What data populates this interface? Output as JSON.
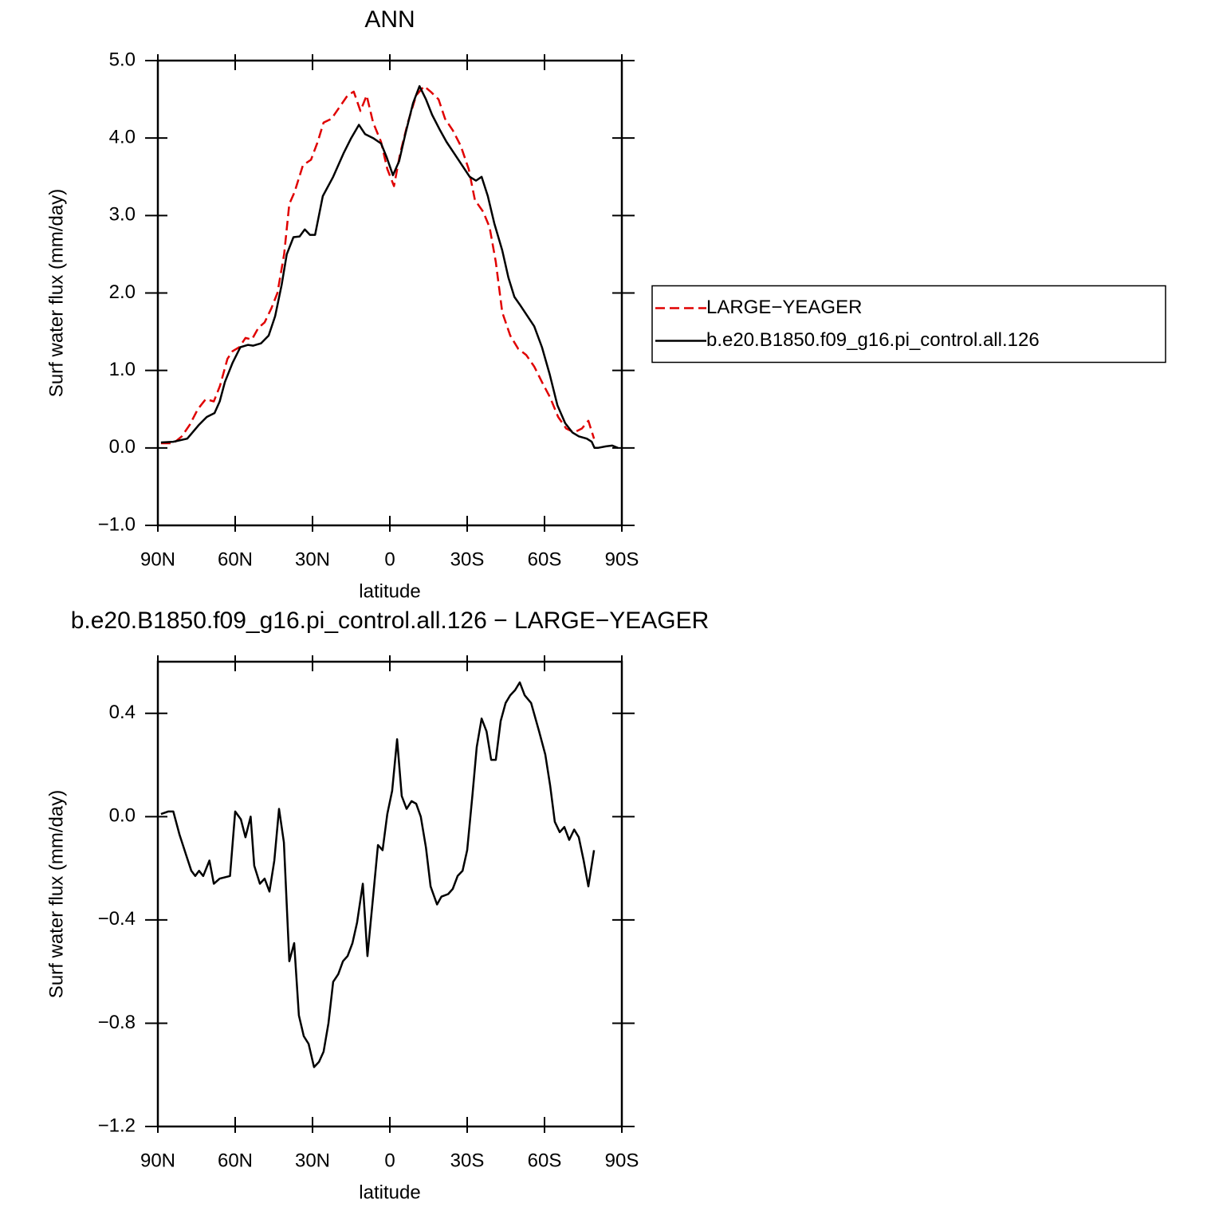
{
  "chart_data": [
    {
      "type": "line",
      "title": "ANN",
      "xlabel": "latitude",
      "ylabel": "Surf water flux (mm/day)",
      "xlim": [
        90,
        -90
      ],
      "xticks": [
        {
          "value": 90,
          "label": "90N"
        },
        {
          "value": 60,
          "label": "60N"
        },
        {
          "value": 30,
          "label": "30N"
        },
        0,
        {
          "value": -30,
          "label": "30S"
        },
        {
          "value": -60,
          "label": "60S"
        },
        {
          "value": -90,
          "label": "90S"
        }
      ],
      "ylim": [
        -1,
        5
      ],
      "yticks": [
        {
          "value": -1,
          "label": "−1.0"
        },
        {
          "value": 0,
          "label": "0.0"
        },
        {
          "value": 1,
          "label": "1.0"
        },
        {
          "value": 2,
          "label": "2.0"
        },
        {
          "value": 3,
          "label": "3.0"
        },
        {
          "value": 4,
          "label": "4.0"
        },
        {
          "value": 5,
          "label": "5.0"
        }
      ],
      "legend": "right",
      "series": [
        {
          "name": "LARGE−YEAGER",
          "color": "#e00000",
          "dash": true,
          "x": [
            88.8,
            84,
            80.7,
            77.6,
            74.5,
            71.4,
            68.3,
            65.9,
            63,
            61,
            58.4,
            56,
            53.5,
            51,
            48.6,
            46,
            43.6,
            41,
            39,
            37,
            33.7,
            30.6,
            28,
            25.7,
            22.6,
            19.5,
            16.4,
            14,
            11.4,
            9,
            6.5,
            3.4,
            1,
            -1.6,
            -4,
            -7,
            -10.2,
            -13.3,
            -15.8,
            -18.9,
            -21.4,
            -24.4,
            -27.5,
            -30.6,
            -33,
            -36.2,
            -38.7,
            -41.1,
            -43.6,
            -46.7,
            -49.8,
            -52.9,
            -56,
            -59,
            -62.2,
            -65.3,
            -68.4,
            -71.5,
            -74.5,
            -77,
            -79.2
          ],
          "values": [
            0.06,
            0.06,
            0.15,
            0.3,
            0.5,
            0.63,
            0.6,
            0.8,
            1.15,
            1.25,
            1.3,
            1.42,
            1.4,
            1.55,
            1.62,
            1.8,
            2.0,
            2.5,
            3.15,
            3.3,
            3.65,
            3.72,
            3.95,
            4.2,
            4.25,
            4.4,
            4.55,
            4.6,
            4.35,
            4.55,
            4.2,
            3.95,
            3.6,
            3.38,
            3.8,
            4.2,
            4.55,
            4.67,
            4.6,
            4.5,
            4.25,
            4.1,
            3.9,
            3.6,
            3.2,
            3.05,
            2.85,
            2.4,
            1.75,
            1.45,
            1.28,
            1.2,
            1.05,
            0.85,
            0.65,
            0.4,
            0.25,
            0.2,
            0.25,
            0.35,
            0.12
          ]
        },
        {
          "name": "b.e20.B1850.f09_g16.pi_control.all.126",
          "color": "#000000",
          "dash": false,
          "x": [
            88.8,
            84,
            78.6,
            74,
            71,
            68,
            66,
            64,
            61,
            58,
            55,
            53,
            50,
            47,
            44.5,
            42,
            40,
            37.4,
            35,
            33,
            31,
            29,
            26,
            22,
            18,
            15,
            12,
            9.6,
            6.5,
            3.4,
            1.2,
            -1.2,
            -3.6,
            -6,
            -9,
            -11.5,
            -14,
            -16.4,
            -19.5,
            -22,
            -25,
            -28,
            -31,
            -33.4,
            -35.6,
            -38,
            -40.5,
            -43.6,
            -46,
            -48.3,
            -50.4,
            -53,
            -56,
            -59,
            -62,
            -65,
            -68,
            -70.8,
            -73.3,
            -76.4,
            -78.3,
            -79.4,
            -80.7,
            -83.8,
            -86.3,
            -88.5
          ],
          "values": [
            0.07,
            0.08,
            0.12,
            0.3,
            0.4,
            0.45,
            0.6,
            0.85,
            1.1,
            1.3,
            1.33,
            1.32,
            1.35,
            1.45,
            1.7,
            2.1,
            2.5,
            2.72,
            2.73,
            2.82,
            2.75,
            2.75,
            3.25,
            3.5,
            3.8,
            4.0,
            4.17,
            4.05,
            4.0,
            3.93,
            3.75,
            3.52,
            3.7,
            4.05,
            4.45,
            4.67,
            4.5,
            4.3,
            4.1,
            3.95,
            3.8,
            3.65,
            3.5,
            3.45,
            3.5,
            3.25,
            2.9,
            2.55,
            2.2,
            1.95,
            1.85,
            1.72,
            1.57,
            1.3,
            0.95,
            0.55,
            0.32,
            0.2,
            0.15,
            0.12,
            0.08,
            0.0,
            0.0,
            0.02,
            0.03,
            0.0
          ]
        }
      ]
    },
    {
      "type": "line",
      "title": "b.e20.B1850.f09_g16.pi_control.all.126 − LARGE−YEAGER",
      "xlabel": "latitude",
      "ylabel": "Surf water flux (mm/day)",
      "xlim": [
        90,
        -90
      ],
      "xticks": [
        {
          "value": 90,
          "label": "90N"
        },
        {
          "value": 60,
          "label": "60N"
        },
        {
          "value": 30,
          "label": "30N"
        },
        0,
        {
          "value": -30,
          "label": "30S"
        },
        {
          "value": -60,
          "label": "60S"
        },
        {
          "value": -90,
          "label": "90S"
        }
      ],
      "ylim": [
        -1.2,
        0.6
      ],
      "yticks": [
        {
          "value": -1.2,
          "label": "−1.2"
        },
        {
          "value": -0.8,
          "label": "−0.8"
        },
        {
          "value": -0.4,
          "label": "−0.4"
        },
        {
          "value": 0,
          "label": "0.0"
        },
        0.4
      ],
      "series": [
        {
          "color": "#000000",
          "dash": false,
          "x": [
            88.8,
            86,
            84,
            81.6,
            79,
            77,
            75.5,
            74,
            72.4,
            70,
            68.3,
            66,
            62,
            60,
            57.8,
            56,
            54,
            52.6,
            50.4,
            48.6,
            46.7,
            44.8,
            43,
            41.1,
            39,
            37.1,
            35.3,
            33.4,
            31.5,
            29.4,
            27.5,
            25.7,
            23.8,
            22,
            20,
            18.2,
            16.4,
            14.5,
            12.7,
            10.5,
            8.7,
            6.5,
            4.6,
            2.8,
            1,
            -0.9,
            -2.8,
            -4.6,
            -6.5,
            -8.4,
            -10.2,
            -12,
            -14,
            -15.8,
            -18.3,
            -20,
            -22.6,
            -24.4,
            -26.3,
            -28.2,
            -30,
            -32,
            -33.7,
            -35.6,
            -37.5,
            -39.3,
            -41.1,
            -43,
            -44.9,
            -46.7,
            -48.6,
            -50.4,
            -52.3,
            -54.8,
            -57.9,
            -60.3,
            -62.2,
            -64,
            -65.9,
            -67.7,
            -69.6,
            -71.5,
            -73.3,
            -75.2,
            -77,
            -79.2
          ],
          "values": [
            0.01,
            0.02,
            0.02,
            -0.07,
            -0.15,
            -0.21,
            -0.23,
            -0.21,
            -0.23,
            -0.17,
            -0.26,
            -0.24,
            -0.23,
            0.02,
            -0.01,
            -0.08,
            0.0,
            -0.19,
            -0.26,
            -0.24,
            -0.29,
            -0.17,
            0.03,
            -0.1,
            -0.56,
            -0.49,
            -0.77,
            -0.85,
            -0.88,
            -0.97,
            -0.95,
            -0.91,
            -0.8,
            -0.64,
            -0.61,
            -0.56,
            -0.54,
            -0.49,
            -0.41,
            -0.26,
            -0.54,
            -0.31,
            -0.11,
            -0.13,
            0.01,
            0.1,
            0.3,
            0.08,
            0.03,
            0.06,
            0.05,
            0.0,
            -0.12,
            -0.27,
            -0.34,
            -0.31,
            -0.3,
            -0.28,
            -0.23,
            -0.21,
            -0.13,
            0.08,
            0.27,
            0.38,
            0.33,
            0.22,
            0.22,
            0.37,
            0.44,
            0.47,
            0.49,
            0.52,
            0.47,
            0.44,
            0.33,
            0.24,
            0.12,
            -0.02,
            -0.06,
            -0.04,
            -0.09,
            -0.05,
            -0.08,
            -0.17,
            -0.27,
            -0.13
          ]
        }
      ]
    }
  ]
}
